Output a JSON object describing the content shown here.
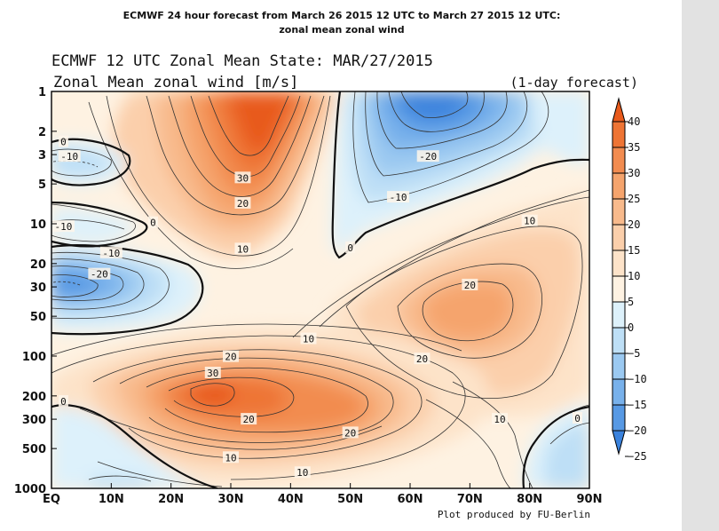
{
  "header": {
    "line1": "ECMWF 24 hour forecast from March 26 2015 12 UTC to March 27 2015 12 UTC:",
    "line2": "zonal mean zonal wind"
  },
  "chart_data": {
    "type": "contour",
    "title": "ECMWF 12 UTC Zonal Mean State: MAR/27/2015",
    "subtitle": "Zonal Mean zonal wind [m/s]",
    "forecast_label": "(1-day forecast)",
    "credit": "Plot produced by FU-Berlin",
    "xlabel": "",
    "ylabel": "",
    "x_ticks": [
      "EQ",
      "10N",
      "20N",
      "30N",
      "40N",
      "50N",
      "60N",
      "70N",
      "80N",
      "90N"
    ],
    "xlim": [
      0,
      90
    ],
    "y_ticks": [
      "1",
      "2",
      "3",
      "5",
      "10",
      "20",
      "30",
      "50",
      "100",
      "200",
      "300",
      "500",
      "1000"
    ],
    "y_tick_values": [
      1,
      2,
      3,
      5,
      10,
      20,
      30,
      50,
      100,
      200,
      300,
      500,
      1000
    ],
    "ylim": [
      1,
      1000
    ],
    "y_scale": "log",
    "y_reversed": true,
    "contour_interval": 5,
    "colorbar": {
      "levels": [
        40,
        35,
        30,
        25,
        20,
        15,
        10,
        5,
        0,
        -5,
        -10,
        -15,
        -20,
        -25
      ],
      "labels": [
        "40",
        "35",
        "30",
        "25",
        "20",
        "15",
        "10",
        "5",
        "0",
        "−5",
        "−10",
        "−15",
        "−20",
        "−25"
      ],
      "colors": [
        "#e85a1c",
        "#ee7434",
        "#f28c50",
        "#f5a46d",
        "#f8ba8c",
        "#fbcfab",
        "#fde3c9",
        "#fef2e2",
        "#ddf1fb",
        "#bedff6",
        "#9bc9f1",
        "#78b1eb",
        "#5799e4",
        "#3a82dd"
      ]
    },
    "contour_labels": [
      {
        "text": "0",
        "lat": 2,
        "p": 2.4
      },
      {
        "text": "-10",
        "lat": 3,
        "p": 3.1
      },
      {
        "text": "30",
        "lat": 32,
        "p": 4.5
      },
      {
        "text": "20",
        "lat": 32,
        "p": 7.0
      },
      {
        "text": "-20",
        "lat": 63,
        "p": 3.1
      },
      {
        "text": "-10",
        "lat": 58,
        "p": 6.3
      },
      {
        "text": "-10",
        "lat": 2,
        "p": 10.5
      },
      {
        "text": "0",
        "lat": 17,
        "p": 9.8
      },
      {
        "text": "10",
        "lat": 32,
        "p": 15.5
      },
      {
        "text": "0",
        "lat": 50,
        "p": 15.2
      },
      {
        "text": "10",
        "lat": 80,
        "p": 9.5
      },
      {
        "text": "-10",
        "lat": 10,
        "p": 16.6
      },
      {
        "text": "-20",
        "lat": 8,
        "p": 24.0
      },
      {
        "text": "20",
        "lat": 70,
        "p": 29.0
      },
      {
        "text": "10",
        "lat": 43,
        "p": 74.0
      },
      {
        "text": "20",
        "lat": 30,
        "p": 101.0
      },
      {
        "text": "20",
        "lat": 62,
        "p": 105.0
      },
      {
        "text": "30",
        "lat": 27,
        "p": 134.0
      },
      {
        "text": "20",
        "lat": 33,
        "p": 300.0
      },
      {
        "text": "20",
        "lat": 50,
        "p": 380.0
      },
      {
        "text": "10",
        "lat": 75,
        "p": 300.0
      },
      {
        "text": "0",
        "lat": 88,
        "p": 295.0
      },
      {
        "text": "0",
        "lat": 2,
        "p": 220.0
      },
      {
        "text": "10",
        "lat": 30,
        "p": 585.0
      },
      {
        "text": "10",
        "lat": 42,
        "p": 760.0
      }
    ]
  }
}
